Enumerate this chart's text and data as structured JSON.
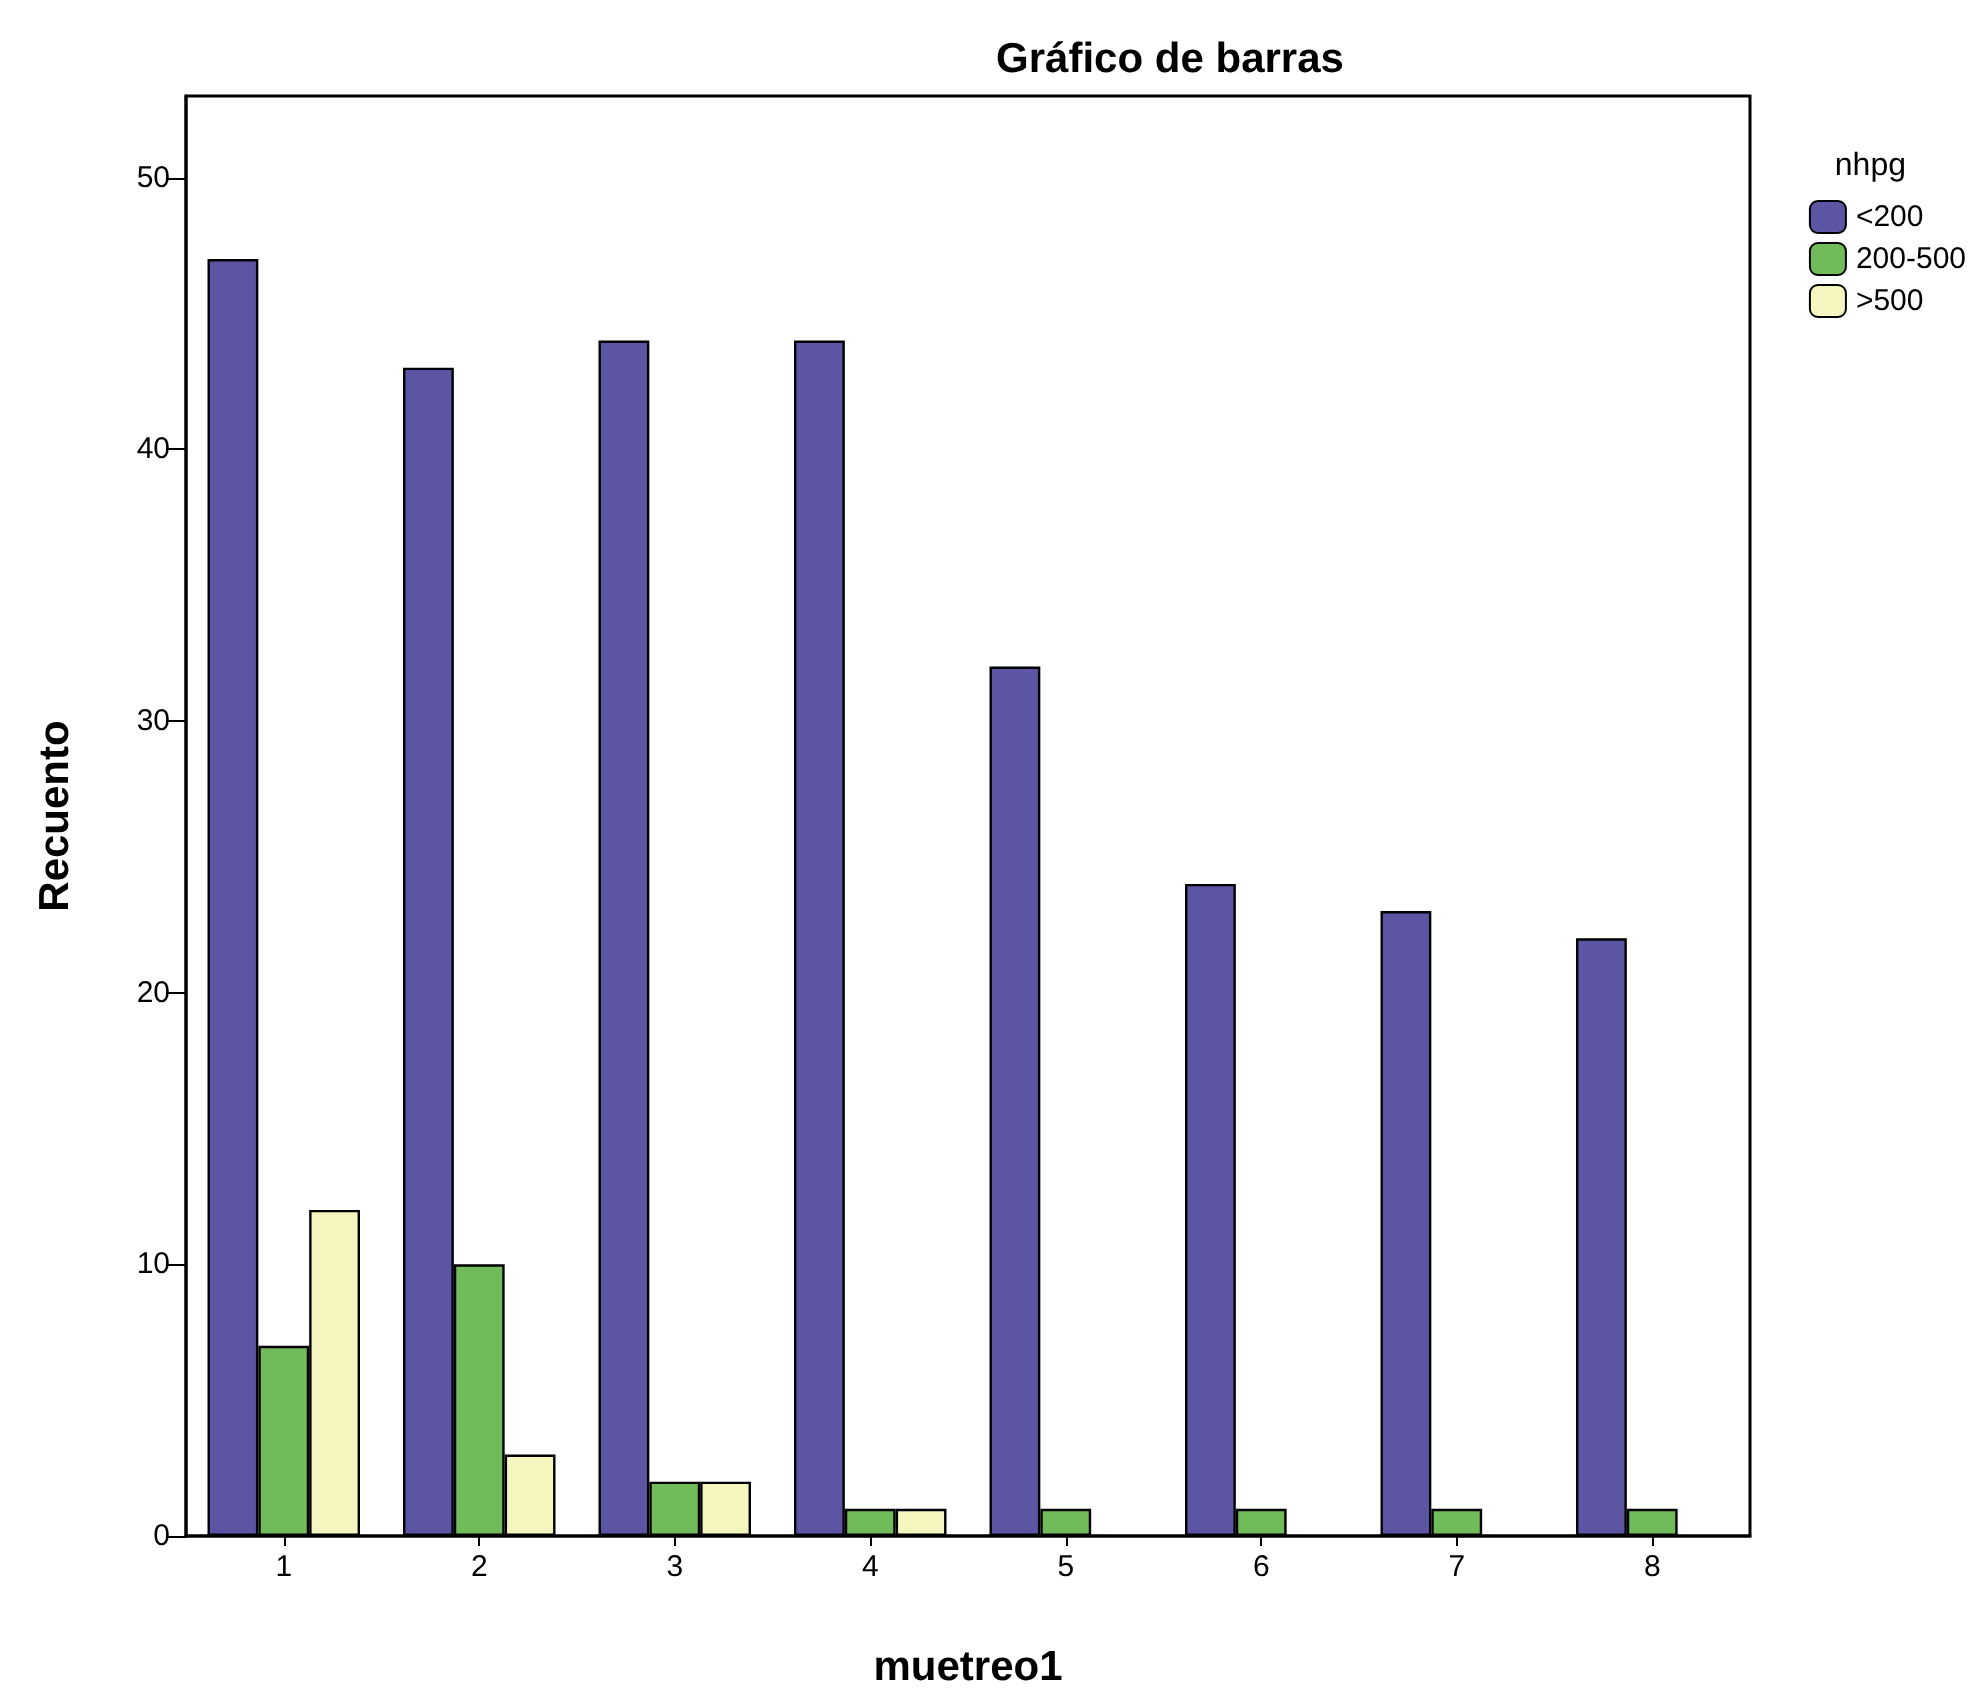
{
  "chart_data": {
    "type": "bar",
    "title": "Gráfico de barras",
    "xlabel": "muetreo1",
    "ylabel": "Recuento",
    "legend_title": "nhpg",
    "categories": [
      "1",
      "2",
      "3",
      "4",
      "5",
      "6",
      "7",
      "8"
    ],
    "series": [
      {
        "name": "<200",
        "color": "#5b55a3",
        "values": [
          47,
          43,
          44,
          44,
          32,
          24,
          23,
          22
        ]
      },
      {
        "name": "200-500",
        "color": "#72bb5a",
        "values": [
          7,
          10,
          2,
          1,
          1,
          1,
          1,
          1
        ]
      },
      {
        "name": ">500",
        "color": "#f5f5bf",
        "values": [
          12,
          3,
          2,
          1,
          null,
          null,
          null,
          null
        ]
      }
    ],
    "ylim": [
      0,
      53
    ],
    "yticks": [
      0,
      10,
      20,
      30,
      40,
      50
    ],
    "grid": false,
    "legend": "top right"
  }
}
